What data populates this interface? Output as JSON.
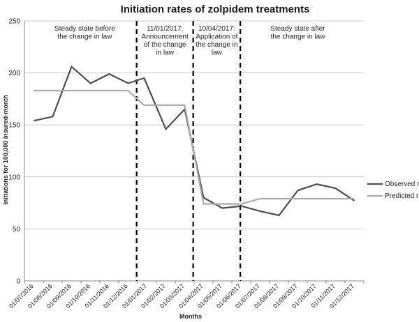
{
  "chart_data": {
    "type": "line",
    "title": "Initiation rates of zolpidem treatments",
    "xlabel": "Months",
    "ylabel": "Initiations for 100,000 insured-month",
    "ylim": [
      0,
      250
    ],
    "yticks": [
      "0",
      "50",
      "100",
      "150",
      "200",
      "250"
    ],
    "grid": true,
    "legend_position": "right",
    "categories": [
      "01/07/2016",
      "01/08/2016",
      "01/09/2016",
      "01/10/2016",
      "01/11/2016",
      "01/12/2016",
      "01/01/2017",
      "01/02/2017",
      "01/03/2017",
      "01/04/2017",
      "01/05/2017",
      "01/06/2017",
      "01/07/2017",
      "01/08/2017",
      "01/09/2017",
      "01/10/2017",
      "01/11/2017",
      "01/12/2017"
    ],
    "series": [
      {
        "name": "Observed rates",
        "color": "#4d4d4d",
        "points": [
          {
            "x": 0.0,
            "y": 154
          },
          {
            "x": 1.0,
            "y": 158
          },
          {
            "x": 2.0,
            "y": 206
          },
          {
            "x": 3.0,
            "y": 190
          },
          {
            "x": 4.0,
            "y": 199
          },
          {
            "x": 5.0,
            "y": 190
          },
          {
            "x": 5.85,
            "y": 195
          },
          {
            "x": 7.0,
            "y": 146
          },
          {
            "x": 8.0,
            "y": 165
          },
          {
            "x": 9.0,
            "y": 80
          },
          {
            "x": 10.0,
            "y": 70
          },
          {
            "x": 11.0,
            "y": 72
          },
          {
            "x": 12.0,
            "y": 67
          },
          {
            "x": 13.0,
            "y": 63
          },
          {
            "x": 14.0,
            "y": 87
          },
          {
            "x": 15.0,
            "y": 93
          },
          {
            "x": 16.0,
            "y": 89
          },
          {
            "x": 17.0,
            "y": 77
          }
        ]
      },
      {
        "name": "Predicted rates",
        "color": "#ababab",
        "points": [
          {
            "x": 0.0,
            "y": 183
          },
          {
            "x": 5.0,
            "y": 183
          },
          {
            "x": 5.85,
            "y": 169
          },
          {
            "x": 8.0,
            "y": 169
          },
          {
            "x": 9.0,
            "y": 74
          },
          {
            "x": 11.0,
            "y": 74
          },
          {
            "x": 12.0,
            "y": 79
          },
          {
            "x": 17.0,
            "y": 79
          }
        ]
      }
    ],
    "vertical_lines": [
      5.45,
      8.45,
      10.95
    ],
    "annotations": [
      {
        "lines": [
          "Steady state before",
          "the change in law"
        ],
        "x": 2.7
      },
      {
        "lines": [
          "11/01/2017:",
          "Announcement",
          "of the change",
          "in law"
        ],
        "x": 6.95
      },
      {
        "lines": [
          "10/04/2017:",
          "Application of",
          "the change in",
          "law"
        ],
        "x": 9.7
      },
      {
        "lines": [
          "Steady state after",
          "the change in law"
        ],
        "x": 14.0
      }
    ]
  }
}
